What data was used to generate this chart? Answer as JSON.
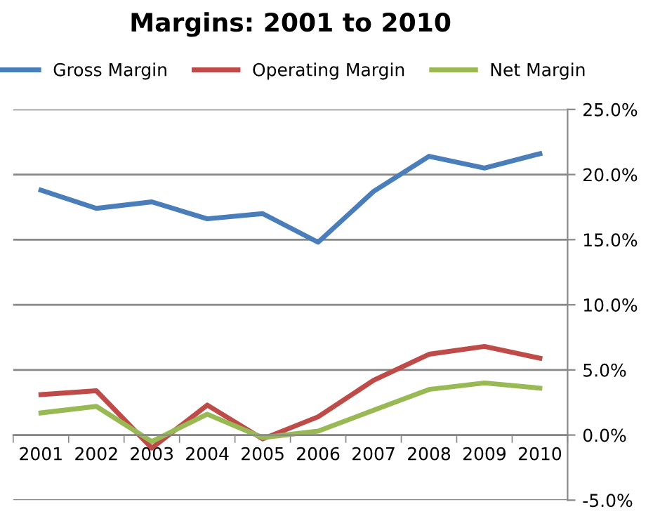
{
  "chart_data": {
    "type": "line",
    "title": "Margins: 2001 to 2010",
    "categories": [
      "2001",
      "2002",
      "2003",
      "2004",
      "2005",
      "2006",
      "2007",
      "2008",
      "2009",
      "2010"
    ],
    "series": [
      {
        "name": "Gross Margin",
        "color": "#4a7ebb",
        "values": [
          18.8,
          17.4,
          17.9,
          16.6,
          17.0,
          14.8,
          18.7,
          21.4,
          20.5,
          21.6
        ]
      },
      {
        "name": "Operating Margin",
        "color": "#be4b48",
        "values": [
          3.1,
          3.4,
          -1.0,
          2.3,
          -0.3,
          1.4,
          4.2,
          6.2,
          6.8,
          5.9
        ]
      },
      {
        "name": "Net Margin",
        "color": "#98b954",
        "values": [
          1.7,
          2.2,
          -0.5,
          1.6,
          -0.2,
          0.3,
          1.9,
          3.5,
          4.0,
          3.6
        ]
      }
    ],
    "ylim": [
      -5,
      25
    ],
    "yticks": [
      {
        "value": -5,
        "label": "-5.0%"
      },
      {
        "value": 0,
        "label": "0.0%"
      },
      {
        "value": 5,
        "label": "5.0%"
      },
      {
        "value": 10,
        "label": "10.0%"
      },
      {
        "value": 15,
        "label": "15.0%"
      },
      {
        "value": 20,
        "label": "20.0%"
      },
      {
        "value": 25,
        "label": "25.0%"
      }
    ],
    "grid": "y",
    "legend": "top",
    "marker": "none",
    "line_style": "solid"
  }
}
